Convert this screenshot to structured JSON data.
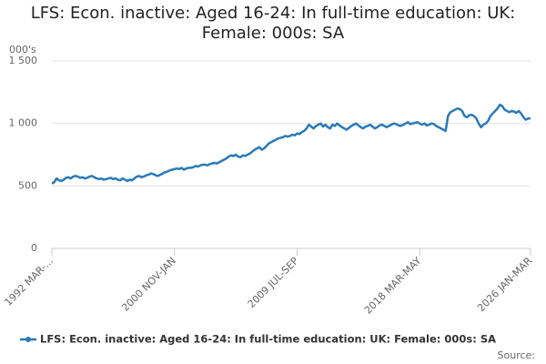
{
  "chart_data": {
    "type": "line",
    "title": "LFS: Econ. inactive: Aged 16-24: In full-time education: UK: Female: 000s: SA",
    "y_unit": "000's",
    "source": "Source:",
    "categories": [
      "1992 MAR-...",
      null,
      null,
      null,
      null,
      null,
      null,
      null,
      null,
      null,
      null,
      null,
      null,
      null,
      null,
      null,
      null,
      null,
      null,
      null,
      null,
      null,
      null,
      null,
      null,
      null,
      null,
      null,
      null,
      null,
      null,
      null,
      null,
      null,
      null,
      null,
      null,
      null,
      null,
      null,
      null,
      null,
      null,
      null,
      null,
      null,
      null,
      null,
      null,
      null,
      null,
      null,
      "2000 NOV-JAN",
      null,
      null,
      null,
      null,
      null,
      null,
      null,
      null,
      null,
      null,
      null,
      null,
      null,
      null,
      null,
      null,
      null,
      null,
      null,
      null,
      null,
      null,
      null,
      null,
      null,
      null,
      null,
      null,
      null,
      null,
      null,
      null,
      null,
      null,
      null,
      null,
      null,
      null,
      null,
      null,
      null,
      null,
      null,
      null,
      null,
      null,
      null,
      null,
      null,
      null,
      null,
      "2009 JUL-SEP",
      null,
      null,
      null,
      null,
      null,
      null,
      null,
      null,
      null,
      null,
      null,
      null,
      null,
      null,
      null,
      null,
      null,
      null,
      null,
      null,
      null,
      null,
      null,
      null,
      null,
      null,
      null,
      null,
      null,
      null,
      null,
      null,
      null,
      null,
      null,
      null,
      null,
      null,
      null,
      null,
      null,
      null,
      null,
      null,
      null,
      null,
      null,
      null,
      null,
      null,
      null,
      "2018 MAR-MAY",
      null,
      null,
      null,
      null,
      null,
      null,
      null,
      null,
      null,
      null,
      null,
      null,
      null,
      null,
      null,
      null,
      null,
      null,
      null,
      null,
      null,
      null,
      null,
      null,
      null,
      null,
      null,
      null,
      null,
      null,
      null,
      null,
      null,
      null,
      null,
      null,
      null,
      null,
      null,
      null,
      null,
      null,
      null,
      null,
      null,
      null,
      "2026 JAN-MAR"
    ],
    "series": [
      {
        "name": "LFS: Econ. inactive: Aged 16-24: In full-time education: UK: Female: 000s: SA",
        "color": "#2a7ab8",
        "values": [
          520,
          530,
          560,
          545,
          540,
          550,
          565,
          570,
          560,
          575,
          580,
          575,
          565,
          570,
          560,
          565,
          575,
          580,
          570,
          560,
          555,
          560,
          550,
          555,
          560,
          565,
          555,
          560,
          550,
          545,
          560,
          550,
          540,
          550,
          545,
          560,
          575,
          580,
          570,
          575,
          585,
          590,
          600,
          595,
          585,
          580,
          590,
          600,
          610,
          615,
          625,
          630,
          635,
          640,
          635,
          645,
          630,
          640,
          645,
          645,
          650,
          660,
          655,
          665,
          670,
          670,
          665,
          675,
          680,
          685,
          680,
          690,
          700,
          710,
          720,
          735,
          745,
          740,
          750,
          735,
          730,
          745,
          740,
          750,
          760,
          775,
          790,
          800,
          810,
          790,
          800,
          820,
          840,
          850,
          860,
          870,
          880,
          885,
          890,
          900,
          895,
          900,
          910,
          905,
          920,
          915,
          930,
          940,
          960,
          990,
          975,
          960,
          980,
          990,
          1000,
          975,
          990,
          970,
          960,
          990,
          980,
          1000,
          985,
          970,
          960,
          950,
          965,
          980,
          990,
          1000,
          985,
          970,
          960,
          975,
          980,
          990,
          975,
          960,
          970,
          985,
          990,
          980,
          970,
          980,
          990,
          1000,
          995,
          985,
          980,
          990,
          1000,
          1010,
          995,
          1000,
          1005,
          1010,
          1000,
          990,
          1000,
          985,
          990,
          1000,
          995,
          980,
          970,
          960,
          950,
          940,
          1060,
          1090,
          1100,
          1110,
          1120,
          1115,
          1100,
          1060,
          1050,
          1065,
          1070,
          1060,
          1040,
          1000,
          970,
          990,
          1000,
          1020,
          1060,
          1080,
          1100,
          1120,
          1150,
          1140,
          1110,
          1100,
          1090,
          1100,
          1095,
          1085,
          1100,
          1080,
          1050,
          1030,
          1040,
          1040
        ]
      }
    ],
    "ylim": [
      0,
      1500
    ],
    "yticks": [
      0,
      500,
      {
        "value": 1000,
        "label": "1 000"
      },
      {
        "value": 1500,
        "label": "1 500"
      }
    ],
    "grid": true,
    "legend": "bottom"
  }
}
